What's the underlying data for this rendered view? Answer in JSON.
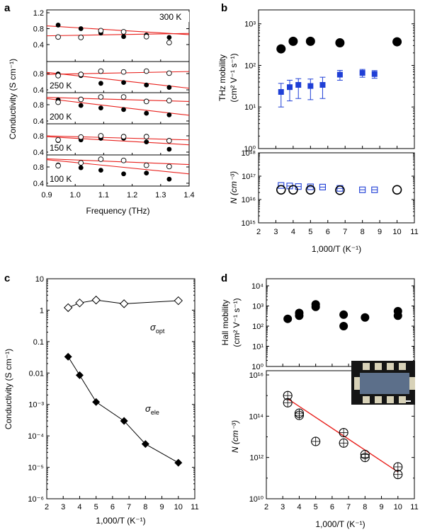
{
  "chart_data": [
    {
      "panel": "a",
      "type": "scatter",
      "xlabel": "Frequency (THz)",
      "ylabel": "Conductivity (S cm⁻¹)",
      "xlim": [
        0.9,
        1.4
      ],
      "ylim": [
        0.4,
        1.2
      ],
      "xticks": [
        "0.9",
        "1.0",
        "1.1",
        "1.2",
        "1.3",
        "1.4"
      ],
      "yticks_top": [
        "0.4",
        "0.8",
        "1.2"
      ],
      "yticks_other": [
        "0.4",
        "0.8"
      ],
      "x": [
        0.94,
        1.02,
        1.09,
        1.17,
        1.25,
        1.33
      ],
      "subplots": [
        {
          "label": "300 K",
          "filled": [
            0.89,
            0.8,
            0.69,
            0.6,
            0.64,
            0.58
          ],
          "open": [
            0.59,
            0.58,
            0.75,
            0.72,
            0.6,
            0.45
          ],
          "fit_filled": [
            0.87,
            0.65
          ],
          "fit_open": [
            0.62,
            0.68
          ]
        },
        {
          "label": "250 K",
          "filled": [
            0.79,
            0.75,
            0.56,
            0.58,
            0.52,
            0.46
          ],
          "open": [
            0.75,
            0.78,
            0.86,
            0.84,
            0.86,
            0.81
          ],
          "fit_filled": [
            0.83,
            0.44
          ],
          "fit_open": [
            0.78,
            0.85
          ]
        },
        {
          "label": "200 K",
          "filled": [
            0.92,
            0.78,
            0.72,
            0.68,
            0.59,
            0.55
          ],
          "open": [
            0.86,
            0.93,
            0.99,
            0.99,
            0.88,
            0.9
          ],
          "fit_filled": [
            0.95,
            0.54
          ],
          "fit_open": [
            0.98,
            0.88
          ]
        },
        {
          "label": "150 K",
          "filled": [
            0.68,
            0.7,
            0.74,
            0.74,
            0.65,
            0.47
          ],
          "open": [
            0.7,
            0.77,
            0.8,
            0.78,
            0.78,
            0.68
          ],
          "fit_filled": [
            0.78,
            0.58
          ],
          "fit_open": [
            0.8,
            0.7
          ]
        },
        {
          "label": "100 K",
          "filled": [
            0.85,
            0.78,
            0.72,
            0.63,
            0.65,
            0.5
          ],
          "open": [
            0.83,
            0.9,
            0.99,
            0.96,
            0.84,
            0.81
          ],
          "fit_filled": [
            0.98,
            0.63
          ],
          "fit_open": [
            1.0,
            0.86
          ]
        }
      ]
    },
    {
      "panel": "b",
      "type": "scatter",
      "xlabel": "1,000/T (K⁻¹)",
      "xlim": [
        2,
        11
      ],
      "xticks": [
        "2",
        "3",
        "4",
        "5",
        "6",
        "7",
        "8",
        "9",
        "10",
        "11"
      ],
      "top": {
        "ylabel": "THz mobility",
        "ylabel_units": "(cm² V⁻¹ s⁻¹)",
        "yscale": "log",
        "ylim": [
          1,
          2000
        ],
        "yticks": [
          "10⁰",
          "10¹",
          "10²",
          "10³"
        ],
        "black": {
          "x": [
            3.3,
            4.0,
            5.0,
            6.7,
            10.0
          ],
          "y": [
            250,
            380,
            380,
            350,
            370
          ]
        },
        "blue": {
          "x": [
            3.3,
            3.8,
            4.3,
            5.0,
            5.7,
            6.7,
            8.0,
            8.7
          ],
          "y": [
            23,
            30,
            34,
            32,
            34,
            60,
            66,
            62
          ],
          "err_low": [
            10,
            14,
            16,
            15,
            16,
            44,
            52,
            49
          ],
          "err_high": [
            37,
            44,
            48,
            47,
            52,
            76,
            80,
            75
          ]
        }
      },
      "bottom": {
        "ylabel": "N (cm⁻³)",
        "yscale": "log",
        "ylim": [
          1000000000000000.0,
          1e+18
        ],
        "yticks": [
          "10¹⁵",
          "10¹⁶",
          "10¹⁷",
          "10¹⁸"
        ],
        "black_open": {
          "x": [
            3.3,
            4.0,
            5.0,
            6.7,
            10.0
          ],
          "y": [
            2.6e+16,
            2.6e+16,
            2.6e+16,
            2.5e+16,
            2.6e+16
          ]
        },
        "blue_open": {
          "x": [
            3.3,
            3.8,
            4.3,
            5.0,
            5.7,
            6.7,
            8.0,
            8.7
          ],
          "y": [
            4e+16,
            3.8e+16,
            3.6e+16,
            3.5e+16,
            3.4e+16,
            3e+16,
            2.6e+16,
            2.6e+16
          ]
        }
      }
    },
    {
      "panel": "c",
      "type": "line",
      "xlabel": "1,000/T (K⁻¹)",
      "ylabel": "Conductivity (S cm⁻¹)",
      "yscale": "log",
      "xlim": [
        2,
        11
      ],
      "ylim": [
        1e-06,
        10
      ],
      "xticks": [
        "2",
        "3",
        "4",
        "5",
        "6",
        "7",
        "8",
        "9",
        "10",
        "11"
      ],
      "yticks": [
        "10⁻⁶",
        "10⁻⁵",
        "10⁻⁴",
        "10⁻³",
        "0.01",
        "0.1",
        "1",
        "10"
      ],
      "series": [
        {
          "name": "σopt",
          "label_main": "σ",
          "label_sub": "opt",
          "marker": "open-diamond",
          "x": [
            3.3,
            4.0,
            5.0,
            6.7,
            10.0
          ],
          "y": [
            1.2,
            1.7,
            2.1,
            1.6,
            2.0
          ]
        },
        {
          "name": "σele",
          "label_main": "σ",
          "label_sub": "ele",
          "marker": "filled-diamond",
          "x": [
            3.3,
            4.0,
            5.0,
            6.7,
            8.0,
            10.0
          ],
          "y": [
            0.033,
            0.0085,
            0.0012,
            0.0003,
            5.5e-05,
            1.4e-05
          ]
        }
      ]
    },
    {
      "panel": "d",
      "type": "scatter",
      "xlabel": "1,000/T (K⁻¹)",
      "xlim": [
        2,
        11
      ],
      "xticks": [
        "2",
        "3",
        "4",
        "5",
        "6",
        "7",
        "8",
        "9",
        "10",
        "11"
      ],
      "top": {
        "ylabel": "Hall mobility",
        "ylabel_units": "(cm² V⁻¹ s⁻¹)",
        "yscale": "log",
        "ylim": [
          1,
          10000
        ],
        "yticks": [
          "10⁰",
          "10¹",
          "10²",
          "10³",
          "10⁴"
        ],
        "points": {
          "x": [
            3.3,
            4.0,
            4.0,
            5.0,
            5.0,
            6.7,
            6.7,
            8.0,
            10.0,
            10.0
          ],
          "y": [
            230,
            330,
            450,
            900,
            1200,
            370,
            100,
            270,
            550,
            330
          ]
        }
      },
      "bottom": {
        "ylabel": "N (cm⁻³)",
        "yscale": "log",
        "ylim": [
          10000000000.0,
          1e+16
        ],
        "yticks": [
          "10¹⁰",
          "10¹²",
          "10¹⁴",
          "10¹⁶"
        ],
        "points": {
          "x": [
            3.3,
            3.3,
            4.0,
            4.0,
            5.0,
            6.7,
            6.7,
            8.0,
            8.0,
            10.0,
            10.0
          ],
          "y": [
            1000000000000000.0,
            450000000000000.0,
            140000000000000.0,
            110000000000000.0,
            6000000000000.0,
            16000000000000.0,
            5000000000000.0,
            1400000000000.0,
            1000000000000.0,
            350000000000.0,
            150000000000.0
          ]
        },
        "fit": {
          "x": [
            3.3,
            10.0
          ],
          "y": [
            700000000000000.0,
            200000000000.0
          ]
        }
      }
    }
  ],
  "colors": {
    "fit_line": "#e8201c",
    "blue_series": "#1f3fd6",
    "black": "#000000"
  }
}
